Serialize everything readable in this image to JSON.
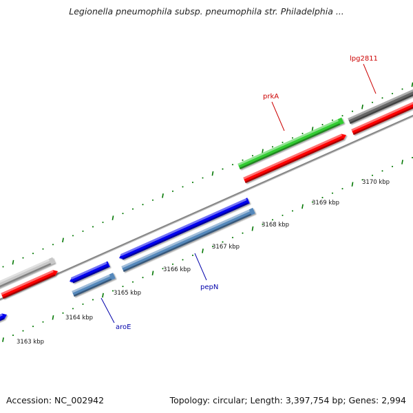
{
  "title": "Legionella pneumophila subsp. pneumophila str. Philadelphia ...",
  "footer": {
    "accession_label": "Accession:",
    "accession": "NC_002942",
    "topology_label": "Topology:",
    "topology": "circular",
    "length_label": "Length:",
    "length": "3,397,754 bp",
    "genes_label": "Genes:",
    "genes": "2,994"
  },
  "colors": {
    "forward_gene": "#ff0000",
    "reverse_gene": "#0000ee",
    "rna_feature": "#5588bb",
    "highlight_gene": "#33cc33",
    "backbone": "#888888",
    "tick": "#007700",
    "forward_label": "#cc0000",
    "reverse_label": "#0000aa"
  },
  "kbp_labels": [
    "3163 kbp",
    "3164 kbp",
    "3165 kbp",
    "3166 kbp",
    "3167 kbp",
    "3168 kbp",
    "3169 kbp",
    "3170 kbp"
  ],
  "gene_labels": [
    {
      "name": "aroE",
      "strand": "reverse"
    },
    {
      "name": "pepN",
      "strand": "reverse"
    },
    {
      "name": "prkA",
      "strand": "forward"
    },
    {
      "name": "lpg2811",
      "strand": "forward"
    }
  ]
}
